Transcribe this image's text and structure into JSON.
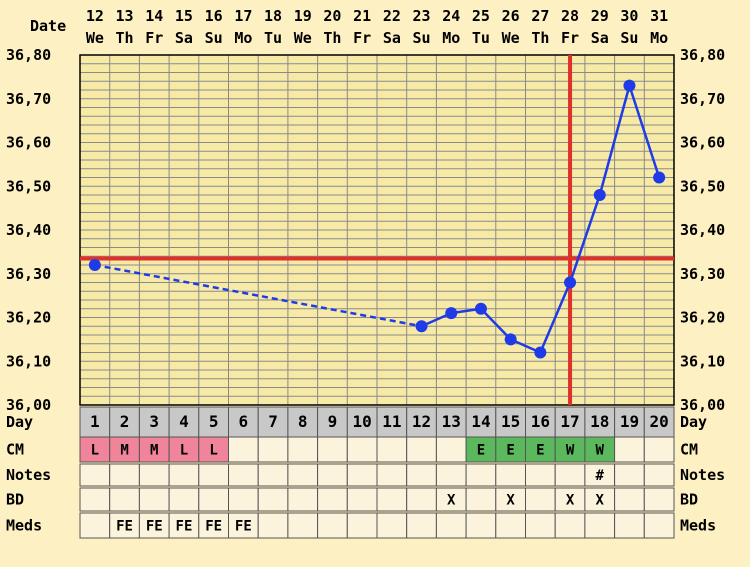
{
  "chart_data": {
    "type": "line",
    "title": "",
    "xlabel": "Date",
    "ylabel": "",
    "ylim": [
      36.0,
      36.8
    ],
    "grid": true,
    "y_ticks": [
      "36,00",
      "36,10",
      "36,20",
      "36,30",
      "36,40",
      "36,50",
      "36,60",
      "36,70",
      "36,80"
    ],
    "dates": [
      "12",
      "13",
      "14",
      "15",
      "16",
      "17",
      "18",
      "19",
      "20",
      "21",
      "22",
      "23",
      "24",
      "25",
      "26",
      "27",
      "28",
      "29",
      "30",
      "31"
    ],
    "weekdays": [
      "We",
      "Th",
      "Fr",
      "Sa",
      "Su",
      "Mo",
      "Tu",
      "We",
      "Th",
      "Fr",
      "Sa",
      "Su",
      "Mo",
      "Tu",
      "We",
      "Th",
      "Fr",
      "Sa",
      "Su",
      "Mo"
    ],
    "days": [
      "1",
      "2",
      "3",
      "4",
      "5",
      "6",
      "7",
      "8",
      "9",
      "10",
      "11",
      "12",
      "13",
      "14",
      "15",
      "16",
      "17",
      "18",
      "19",
      "20"
    ],
    "temperatures": [
      36.32,
      null,
      null,
      null,
      null,
      null,
      null,
      null,
      null,
      null,
      null,
      36.18,
      36.21,
      36.22,
      36.15,
      36.12,
      36.28,
      36.48,
      36.73,
      36.52
    ],
    "coverline": 36.335,
    "ovulation_day": 17,
    "rows": [
      {
        "label": "Day",
        "cells": [
          "1",
          "2",
          "3",
          "4",
          "5",
          "6",
          "7",
          "8",
          "9",
          "10",
          "11",
          "12",
          "13",
          "14",
          "15",
          "16",
          "17",
          "18",
          "19",
          "20"
        ]
      },
      {
        "label": "CM",
        "cells": [
          "L",
          "M",
          "M",
          "L",
          "L",
          "",
          "",
          "",
          "",
          "",
          "",
          "",
          "",
          "E",
          "E",
          "E",
          "W",
          "W",
          "",
          ""
        ],
        "colors": [
          "#f0849a",
          "#f0849a",
          "#f0849a",
          "#f0849a",
          "#f0849a",
          "",
          "",
          "",
          "",
          "",
          "",
          "",
          "",
          "#5cb85c",
          "#5cb85c",
          "#5cb85c",
          "#5cb85c",
          "#5cb85c",
          "",
          ""
        ]
      },
      {
        "label": "Notes",
        "cells": [
          "",
          "",
          "",
          "",
          "",
          "",
          "",
          "",
          "",
          "",
          "",
          "",
          "",
          "",
          "",
          "",
          "",
          "#",
          "",
          ""
        ]
      },
      {
        "label": "BD",
        "cells": [
          "",
          "",
          "",
          "",
          "",
          "",
          "",
          "",
          "",
          "",
          "",
          "",
          "X",
          "",
          "X",
          "",
          "X",
          "X",
          "",
          ""
        ]
      },
      {
        "label": "Meds",
        "cells": [
          "",
          "FE",
          "FE",
          "FE",
          "FE",
          "FE",
          "",
          "",
          "",
          "",
          "",
          "",
          "",
          "",
          "",
          "",
          "",
          "",
          "",
          ""
        ]
      }
    ]
  },
  "colors": {
    "background": "#fdf0c2",
    "plot_area": "#f6eaa6",
    "grid": "#8a8a8a",
    "series": "#1f3be8",
    "coverline": "#e0302a",
    "day_row": "#c8c8c8",
    "table_cell": "#fbf3dc"
  }
}
